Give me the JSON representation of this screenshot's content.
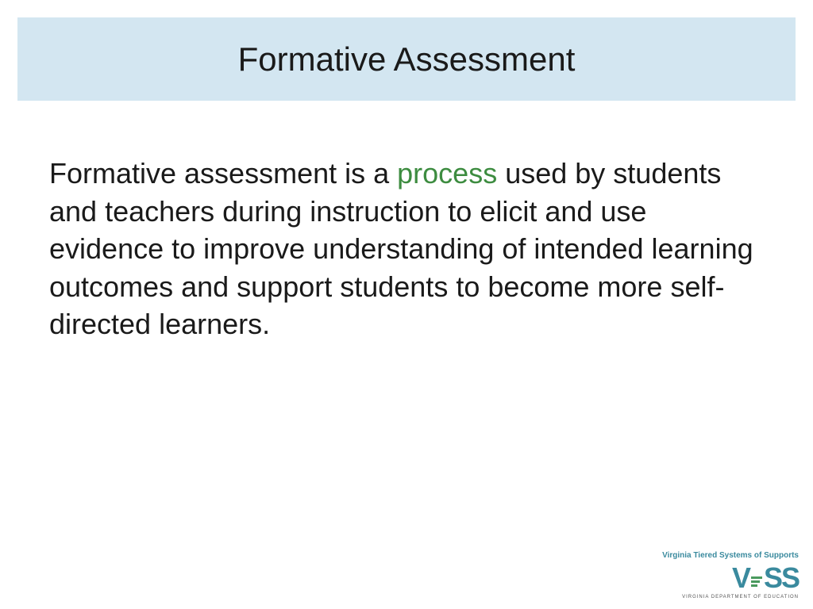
{
  "slide": {
    "title": "Formative Assessment",
    "body_part1": "Formative assessment is a ",
    "body_highlight": "process",
    "body_part2": " used by students and teachers during instruction to elicit and use evidence to improve understanding of intended learning outcomes and support students to become more self-directed learners.",
    "title_bg_color": "#d3e6f1",
    "highlight_color": "#3d8c40",
    "text_color": "#1a1a1a",
    "body_fontsize": 36,
    "title_fontsize": 42
  },
  "logo": {
    "tagline": "Virginia Tiered Systems of Supports",
    "acronym_v": "V",
    "acronym_ss": "SS",
    "subline": "VIRGINIA DEPARTMENT OF EDUCATION",
    "primary_color": "#3a8a9e",
    "accent_color": "#4a9a5e"
  }
}
